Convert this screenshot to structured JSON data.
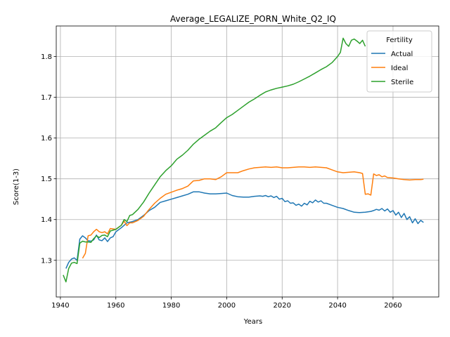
{
  "chart_data": {
    "type": "line",
    "title": "Average_LEGALIZE_PORN_White_Q2_IQ",
    "xlabel": "Years",
    "ylabel": "Score(1-3)",
    "xlim": [
      1938.5,
      2076.5
    ],
    "ylim": [
      1.21,
      1.875
    ],
    "xticks": [
      1940,
      1960,
      1980,
      2000,
      2020,
      2040,
      2060
    ],
    "yticks": [
      1.3,
      1.4,
      1.5,
      1.6,
      1.7,
      1.8
    ],
    "grid": true,
    "legend": {
      "title": "Fertility",
      "placement": "top-right"
    },
    "series": [
      {
        "name": "Actual",
        "color": "#1f77b4",
        "points": [
          [
            1942,
            1.28
          ],
          [
            1943,
            1.295
          ],
          [
            1944,
            1.303
          ],
          [
            1945,
            1.306
          ],
          [
            1946,
            1.3
          ],
          [
            1947,
            1.352
          ],
          [
            1948,
            1.36
          ],
          [
            1949,
            1.355
          ],
          [
            1950,
            1.348
          ],
          [
            1951,
            1.347
          ],
          [
            1952,
            1.35
          ],
          [
            1953,
            1.362
          ],
          [
            1954,
            1.35
          ],
          [
            1955,
            1.348
          ],
          [
            1956,
            1.355
          ],
          [
            1957,
            1.346
          ],
          [
            1958,
            1.355
          ],
          [
            1959,
            1.358
          ],
          [
            1960,
            1.37
          ],
          [
            1962,
            1.38
          ],
          [
            1964,
            1.392
          ],
          [
            1966,
            1.395
          ],
          [
            1968,
            1.4
          ],
          [
            1970,
            1.41
          ],
          [
            1972,
            1.422
          ],
          [
            1974,
            1.43
          ],
          [
            1976,
            1.442
          ],
          [
            1978,
            1.446
          ],
          [
            1980,
            1.45
          ],
          [
            1982,
            1.454
          ],
          [
            1984,
            1.458
          ],
          [
            1986,
            1.462
          ],
          [
            1988,
            1.468
          ],
          [
            1990,
            1.468
          ],
          [
            1992,
            1.465
          ],
          [
            1994,
            1.463
          ],
          [
            1996,
            1.463
          ],
          [
            1998,
            1.464
          ],
          [
            2000,
            1.465
          ],
          [
            2002,
            1.459
          ],
          [
            2004,
            1.456
          ],
          [
            2006,
            1.455
          ],
          [
            2008,
            1.455
          ],
          [
            2010,
            1.457
          ],
          [
            2012,
            1.458
          ],
          [
            2013,
            1.457
          ],
          [
            2014,
            1.459
          ],
          [
            2015,
            1.456
          ],
          [
            2016,
            1.458
          ],
          [
            2017,
            1.454
          ],
          [
            2018,
            1.457
          ],
          [
            2019,
            1.45
          ],
          [
            2020,
            1.452
          ],
          [
            2021,
            1.444
          ],
          [
            2022,
            1.446
          ],
          [
            2023,
            1.44
          ],
          [
            2024,
            1.441
          ],
          [
            2025,
            1.435
          ],
          [
            2026,
            1.438
          ],
          [
            2027,
            1.433
          ],
          [
            2028,
            1.44
          ],
          [
            2029,
            1.436
          ],
          [
            2030,
            1.445
          ],
          [
            2031,
            1.441
          ],
          [
            2032,
            1.448
          ],
          [
            2033,
            1.443
          ],
          [
            2034,
            1.446
          ],
          [
            2035,
            1.44
          ],
          [
            2036,
            1.44
          ],
          [
            2038,
            1.435
          ],
          [
            2040,
            1.43
          ],
          [
            2042,
            1.427
          ],
          [
            2044,
            1.422
          ],
          [
            2046,
            1.418
          ],
          [
            2048,
            1.417
          ],
          [
            2050,
            1.418
          ],
          [
            2052,
            1.42
          ],
          [
            2053,
            1.422
          ],
          [
            2054,
            1.425
          ],
          [
            2055,
            1.423
          ],
          [
            2056,
            1.427
          ],
          [
            2057,
            1.421
          ],
          [
            2058,
            1.426
          ],
          [
            2059,
            1.418
          ],
          [
            2060,
            1.422
          ],
          [
            2061,
            1.411
          ],
          [
            2062,
            1.418
          ],
          [
            2063,
            1.405
          ],
          [
            2064,
            1.415
          ],
          [
            2065,
            1.4
          ],
          [
            2066,
            1.407
          ],
          [
            2067,
            1.392
          ],
          [
            2068,
            1.402
          ],
          [
            2069,
            1.39
          ],
          [
            2070,
            1.398
          ],
          [
            2071,
            1.393
          ]
        ]
      },
      {
        "name": "Ideal",
        "color": "#ff7f0e",
        "points": [
          [
            1948,
            1.305
          ],
          [
            1949,
            1.317
          ],
          [
            1950,
            1.36
          ],
          [
            1951,
            1.362
          ],
          [
            1952,
            1.37
          ],
          [
            1953,
            1.376
          ],
          [
            1954,
            1.37
          ],
          [
            1955,
            1.368
          ],
          [
            1956,
            1.37
          ],
          [
            1957,
            1.365
          ],
          [
            1958,
            1.378
          ],
          [
            1960,
            1.376
          ],
          [
            1962,
            1.386
          ],
          [
            1963,
            1.396
          ],
          [
            1964,
            1.385
          ],
          [
            1965,
            1.392
          ],
          [
            1966,
            1.392
          ],
          [
            1968,
            1.398
          ],
          [
            1970,
            1.408
          ],
          [
            1972,
            1.425
          ],
          [
            1974,
            1.44
          ],
          [
            1976,
            1.452
          ],
          [
            1978,
            1.462
          ],
          [
            1980,
            1.467
          ],
          [
            1982,
            1.472
          ],
          [
            1984,
            1.476
          ],
          [
            1986,
            1.482
          ],
          [
            1988,
            1.495
          ],
          [
            1990,
            1.496
          ],
          [
            1992,
            1.5
          ],
          [
            1994,
            1.5
          ],
          [
            1996,
            1.498
          ],
          [
            1998,
            1.505
          ],
          [
            2000,
            1.515
          ],
          [
            2002,
            1.515
          ],
          [
            2004,
            1.515
          ],
          [
            2006,
            1.52
          ],
          [
            2008,
            1.524
          ],
          [
            2010,
            1.527
          ],
          [
            2012,
            1.528
          ],
          [
            2014,
            1.529
          ],
          [
            2016,
            1.528
          ],
          [
            2018,
            1.529
          ],
          [
            2020,
            1.527
          ],
          [
            2022,
            1.527
          ],
          [
            2024,
            1.528
          ],
          [
            2026,
            1.529
          ],
          [
            2028,
            1.529
          ],
          [
            2030,
            1.528
          ],
          [
            2032,
            1.529
          ],
          [
            2034,
            1.528
          ],
          [
            2036,
            1.527
          ],
          [
            2038,
            1.522
          ],
          [
            2040,
            1.517
          ],
          [
            2042,
            1.515
          ],
          [
            2044,
            1.516
          ],
          [
            2046,
            1.517
          ],
          [
            2048,
            1.515
          ],
          [
            2049,
            1.513
          ],
          [
            2050,
            1.462
          ],
          [
            2051,
            1.463
          ],
          [
            2052,
            1.46
          ],
          [
            2053,
            1.512
          ],
          [
            2054,
            1.508
          ],
          [
            2055,
            1.51
          ],
          [
            2056,
            1.505
          ],
          [
            2057,
            1.507
          ],
          [
            2058,
            1.503
          ],
          [
            2060,
            1.502
          ],
          [
            2062,
            1.5
          ],
          [
            2064,
            1.498
          ],
          [
            2066,
            1.497
          ],
          [
            2068,
            1.498
          ],
          [
            2070,
            1.498
          ],
          [
            2071,
            1.499
          ]
        ]
      },
      {
        "name": "Sterile",
        "color": "#2ca02c",
        "points": [
          [
            1941,
            1.264
          ],
          [
            1942,
            1.247
          ],
          [
            1943,
            1.28
          ],
          [
            1944,
            1.293
          ],
          [
            1945,
            1.295
          ],
          [
            1946,
            1.292
          ],
          [
            1947,
            1.342
          ],
          [
            1948,
            1.347
          ],
          [
            1949,
            1.345
          ],
          [
            1950,
            1.345
          ],
          [
            1951,
            1.344
          ],
          [
            1952,
            1.353
          ],
          [
            1953,
            1.36
          ],
          [
            1954,
            1.356
          ],
          [
            1955,
            1.361
          ],
          [
            1956,
            1.362
          ],
          [
            1957,
            1.358
          ],
          [
            1958,
            1.372
          ],
          [
            1960,
            1.376
          ],
          [
            1962,
            1.386
          ],
          [
            1963,
            1.4
          ],
          [
            1964,
            1.395
          ],
          [
            1965,
            1.41
          ],
          [
            1966,
            1.412
          ],
          [
            1968,
            1.425
          ],
          [
            1970,
            1.443
          ],
          [
            1972,
            1.465
          ],
          [
            1974,
            1.485
          ],
          [
            1976,
            1.505
          ],
          [
            1978,
            1.52
          ],
          [
            1980,
            1.532
          ],
          [
            1982,
            1.548
          ],
          [
            1984,
            1.558
          ],
          [
            1986,
            1.57
          ],
          [
            1988,
            1.585
          ],
          [
            1990,
            1.597
          ],
          [
            1992,
            1.607
          ],
          [
            1994,
            1.617
          ],
          [
            1996,
            1.625
          ],
          [
            1998,
            1.638
          ],
          [
            2000,
            1.65
          ],
          [
            2002,
            1.658
          ],
          [
            2004,
            1.668
          ],
          [
            2006,
            1.678
          ],
          [
            2008,
            1.688
          ],
          [
            2010,
            1.696
          ],
          [
            2012,
            1.705
          ],
          [
            2014,
            1.713
          ],
          [
            2016,
            1.718
          ],
          [
            2018,
            1.722
          ],
          [
            2020,
            1.725
          ],
          [
            2022,
            1.728
          ],
          [
            2024,
            1.732
          ],
          [
            2026,
            1.738
          ],
          [
            2028,
            1.745
          ],
          [
            2030,
            1.752
          ],
          [
            2032,
            1.76
          ],
          [
            2034,
            1.768
          ],
          [
            2036,
            1.775
          ],
          [
            2038,
            1.785
          ],
          [
            2040,
            1.8
          ],
          [
            2041,
            1.81
          ],
          [
            2042,
            1.845
          ],
          [
            2043,
            1.832
          ],
          [
            2044,
            1.825
          ],
          [
            2045,
            1.84
          ],
          [
            2046,
            1.843
          ],
          [
            2047,
            1.838
          ],
          [
            2048,
            1.832
          ],
          [
            2049,
            1.84
          ],
          [
            2050,
            1.825
          ]
        ]
      }
    ]
  }
}
